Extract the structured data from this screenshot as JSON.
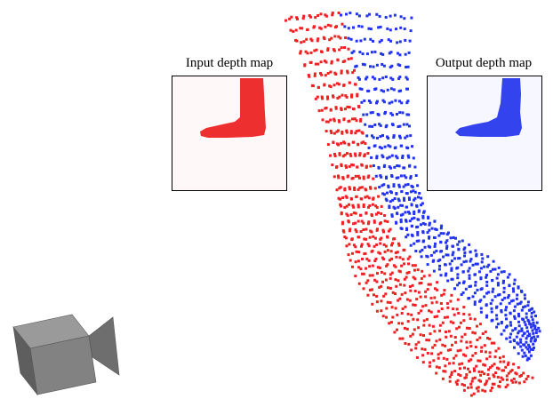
{
  "figure": {
    "input_caption": "Input depth map",
    "output_caption": "Output depth map",
    "colors": {
      "input": "#ee2222",
      "output": "#2233ee",
      "panel_bg_input": "#fff8f8",
      "panel_bg_output": "#f7f7ff",
      "camera_front": "#808080",
      "camera_side": "#5e5e5e",
      "camera_top": "#9a9a9a"
    },
    "icons": [
      "camera-icon"
    ]
  }
}
